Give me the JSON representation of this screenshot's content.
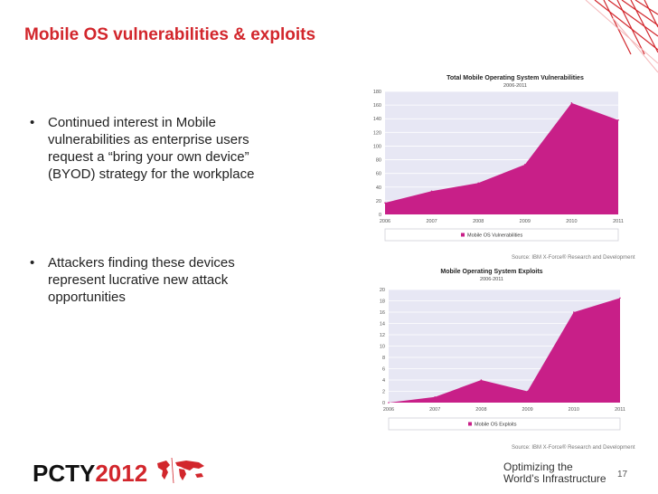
{
  "slide": {
    "title": "Mobile OS vulnerabilities & exploits",
    "bullets": [
      "Continued interest in Mobile vulnerabilities as enterprise users request a “bring your own device” (BYOD)  strategy for the workplace",
      "Attackers finding these devices represent lucrative new attack opportunities"
    ],
    "bullet_char": "•",
    "page_number": "17"
  },
  "footer": {
    "logo_text": "PCTY",
    "logo_year": "2012",
    "tagline_line1": "Optimizing the",
    "tagline_line2": "World’s Infrastructure"
  },
  "colors": {
    "accent_red": "#d2262c",
    "series_magenta": "#c81f88",
    "plot_background": "#e7e7f4"
  },
  "chart_data": [
    {
      "type": "area",
      "title": "Total Mobile Operating System Vulnerabilities",
      "subtitle": "2006-2011",
      "x": [
        "2006",
        "2007",
        "2008",
        "2009",
        "2010",
        "2011"
      ],
      "series": [
        {
          "name": "Mobile OS Vulnerabilities",
          "values": [
            17,
            34,
            46,
            73,
            163,
            138
          ]
        }
      ],
      "yticks": [
        0,
        20,
        40,
        60,
        80,
        100,
        120,
        140,
        160,
        180
      ],
      "ylim": [
        0,
        180
      ],
      "grid": true,
      "legend_position": "bottom",
      "source": "Source: IBM X-Force® Research and Development"
    },
    {
      "type": "area",
      "title": "Mobile Operating System Exploits",
      "subtitle": "2006-2011",
      "x": [
        "2006",
        "2007",
        "2008",
        "2009",
        "2010",
        "2011"
      ],
      "series": [
        {
          "name": "Mobile OS Exploits",
          "values": [
            0,
            1,
            4,
            2,
            16,
            18.5
          ]
        }
      ],
      "yticks": [
        0,
        2,
        4,
        6,
        8,
        10,
        12,
        14,
        16,
        18,
        20
      ],
      "ylim": [
        0,
        20
      ],
      "grid": true,
      "legend_position": "bottom",
      "source": "Source: IBM X-Force® Research and Development"
    }
  ]
}
